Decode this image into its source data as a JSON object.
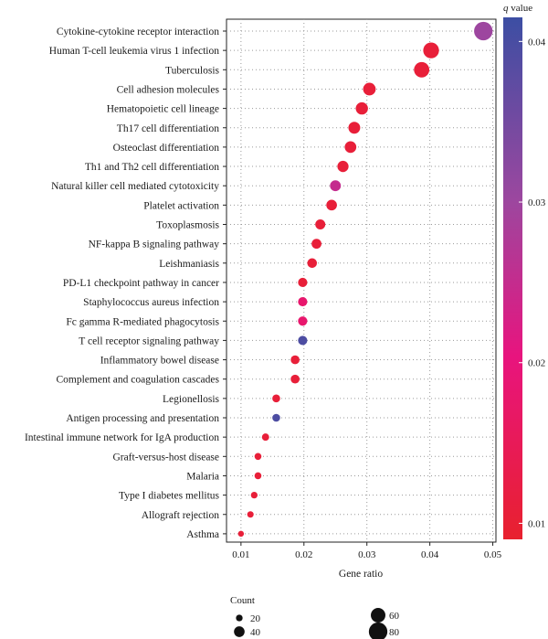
{
  "chart_data": {
    "type": "scatter",
    "xlabel": "Gene ratio",
    "xlim": [
      0.0077,
      0.0505
    ],
    "x_ticks": [
      0.01,
      0.02,
      0.03,
      0.04,
      0.05
    ],
    "x_tick_labels": [
      "0.01",
      "0.02",
      "0.03",
      "0.04",
      "0.05"
    ],
    "grid": true,
    "points": [
      {
        "term": "Cytokine-cytokine receptor interaction",
        "gene_ratio": 0.0485,
        "count": 80,
        "q": 0.03
      },
      {
        "term": "Human T-cell leukemia virus 1 infection",
        "gene_ratio": 0.0402,
        "count": 66,
        "q": 0.0105
      },
      {
        "term": "Tuberculosis",
        "gene_ratio": 0.0387,
        "count": 64,
        "q": 0.0105
      },
      {
        "term": "Cell adhesion molecules",
        "gene_ratio": 0.0304,
        "count": 50,
        "q": 0.0105
      },
      {
        "term": "Hematopoietic cell lineage",
        "gene_ratio": 0.0292,
        "count": 48,
        "q": 0.0105
      },
      {
        "term": "Th17 cell differentiation",
        "gene_ratio": 0.028,
        "count": 46,
        "q": 0.0105
      },
      {
        "term": "Osteoclast differentiation",
        "gene_ratio": 0.0274,
        "count": 45,
        "q": 0.0105
      },
      {
        "term": "Th1 and Th2 cell differentiation",
        "gene_ratio": 0.0262,
        "count": 43,
        "q": 0.0105
      },
      {
        "term": "Natural killer cell mediated cytotoxicity",
        "gene_ratio": 0.025,
        "count": 41,
        "q": 0.025
      },
      {
        "term": "Platelet activation",
        "gene_ratio": 0.0244,
        "count": 40,
        "q": 0.0105
      },
      {
        "term": "Toxoplasmosis",
        "gene_ratio": 0.0226,
        "count": 37,
        "q": 0.0105
      },
      {
        "term": "NF-kappa B signaling pathway",
        "gene_ratio": 0.022,
        "count": 36,
        "q": 0.0105
      },
      {
        "term": "Leishmaniasis",
        "gene_ratio": 0.0213,
        "count": 35,
        "q": 0.0105
      },
      {
        "term": "PD-L1 checkpoint pathway in cancer",
        "gene_ratio": 0.0198,
        "count": 33,
        "q": 0.0105
      },
      {
        "term": "Staphylococcus aureus infection",
        "gene_ratio": 0.0198,
        "count": 33,
        "q": 0.018
      },
      {
        "term": "Fc gamma R-mediated phagocytosis",
        "gene_ratio": 0.0198,
        "count": 33,
        "q": 0.018
      },
      {
        "term": "T cell receptor signaling pathway",
        "gene_ratio": 0.0198,
        "count": 33,
        "q": 0.0395
      },
      {
        "term": "Inflammatory bowel disease",
        "gene_ratio": 0.0186,
        "count": 31,
        "q": 0.0105
      },
      {
        "term": "Complement and coagulation cascades",
        "gene_ratio": 0.0186,
        "count": 31,
        "q": 0.0105
      },
      {
        "term": "Legionellosis",
        "gene_ratio": 0.0156,
        "count": 26,
        "q": 0.0105
      },
      {
        "term": "Antigen processing and presentation",
        "gene_ratio": 0.0156,
        "count": 26,
        "q": 0.0395
      },
      {
        "term": "Intestinal immune network for IgA production",
        "gene_ratio": 0.0139,
        "count": 23,
        "q": 0.0105
      },
      {
        "term": "Graft-versus-host disease",
        "gene_ratio": 0.0127,
        "count": 21,
        "q": 0.0105
      },
      {
        "term": "Malaria",
        "gene_ratio": 0.0127,
        "count": 21,
        "q": 0.0105
      },
      {
        "term": "Type I diabetes mellitus",
        "gene_ratio": 0.0121,
        "count": 20,
        "q": 0.0105
      },
      {
        "term": "Allograft rejection",
        "gene_ratio": 0.0115,
        "count": 19,
        "q": 0.0105
      },
      {
        "term": "Asthma",
        "gene_ratio": 0.01,
        "count": 16,
        "q": 0.0105
      }
    ],
    "color_legend": {
      "title_q": "q",
      "title_rest": " value",
      "min": 0.009,
      "max": 0.0415,
      "ticks": [
        0.01,
        0.02,
        0.03,
        0.04
      ],
      "tick_labels": [
        "0.01",
        "0.02",
        "0.03",
        "0.04"
      ],
      "colors": [
        "#e8212e",
        "#e8147e",
        "#9c479f",
        "#3c4ea3"
      ]
    },
    "size_legend": {
      "title": "Count",
      "items": [
        {
          "count": 20,
          "label": "20"
        },
        {
          "count": 40,
          "label": "40"
        },
        {
          "count": 60,
          "label": "60"
        },
        {
          "count": 80,
          "label": "80"
        }
      ]
    }
  }
}
